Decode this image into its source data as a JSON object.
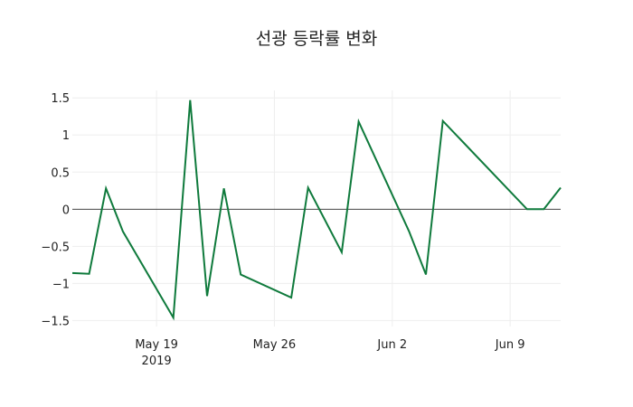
{
  "chart_data": {
    "type": "line",
    "title": "선광 등락률 변화",
    "xlabel": "",
    "ylabel": "",
    "x": [
      "2019-05-14",
      "2019-05-15",
      "2019-05-16",
      "2019-05-17",
      "2019-05-20",
      "2019-05-21",
      "2019-05-22",
      "2019-05-23",
      "2019-05-24",
      "2019-05-27",
      "2019-05-28",
      "2019-05-30",
      "2019-05-31",
      "2019-06-03",
      "2019-06-04",
      "2019-06-05",
      "2019-06-10",
      "2019-06-11",
      "2019-06-12"
    ],
    "series": [
      {
        "name": "등락률",
        "color": "#0f7a3c",
        "values": [
          -0.86,
          -0.87,
          0.28,
          -0.3,
          -1.46,
          1.47,
          -1.17,
          0.28,
          -0.88,
          -1.19,
          0.29,
          -0.58,
          1.18,
          -0.3,
          -0.88,
          1.19,
          0.0,
          0.0,
          0.29
        ]
      }
    ],
    "xticks": [
      {
        "date": "2019-05-19",
        "label": "May 19",
        "sublabel": "2019"
      },
      {
        "date": "2019-05-26",
        "label": "May 26",
        "sublabel": ""
      },
      {
        "date": "2019-06-02",
        "label": "Jun 2",
        "sublabel": ""
      },
      {
        "date": "2019-06-09",
        "label": "Jun 9",
        "sublabel": ""
      }
    ],
    "yticks": [
      1.5,
      1,
      0.5,
      0,
      -0.5,
      -1,
      -1.5
    ],
    "ytick_labels": [
      "1.5",
      "1",
      "0.5",
      "0",
      "−0.5",
      "−1",
      "−1.5"
    ],
    "ylim": [
      -1.58,
      1.6
    ],
    "xlim": [
      "2019-05-14",
      "2019-06-12"
    ],
    "grid": true,
    "legend": "none",
    "zero_line_color": "#444444",
    "grid_color": "#eeeeee"
  }
}
